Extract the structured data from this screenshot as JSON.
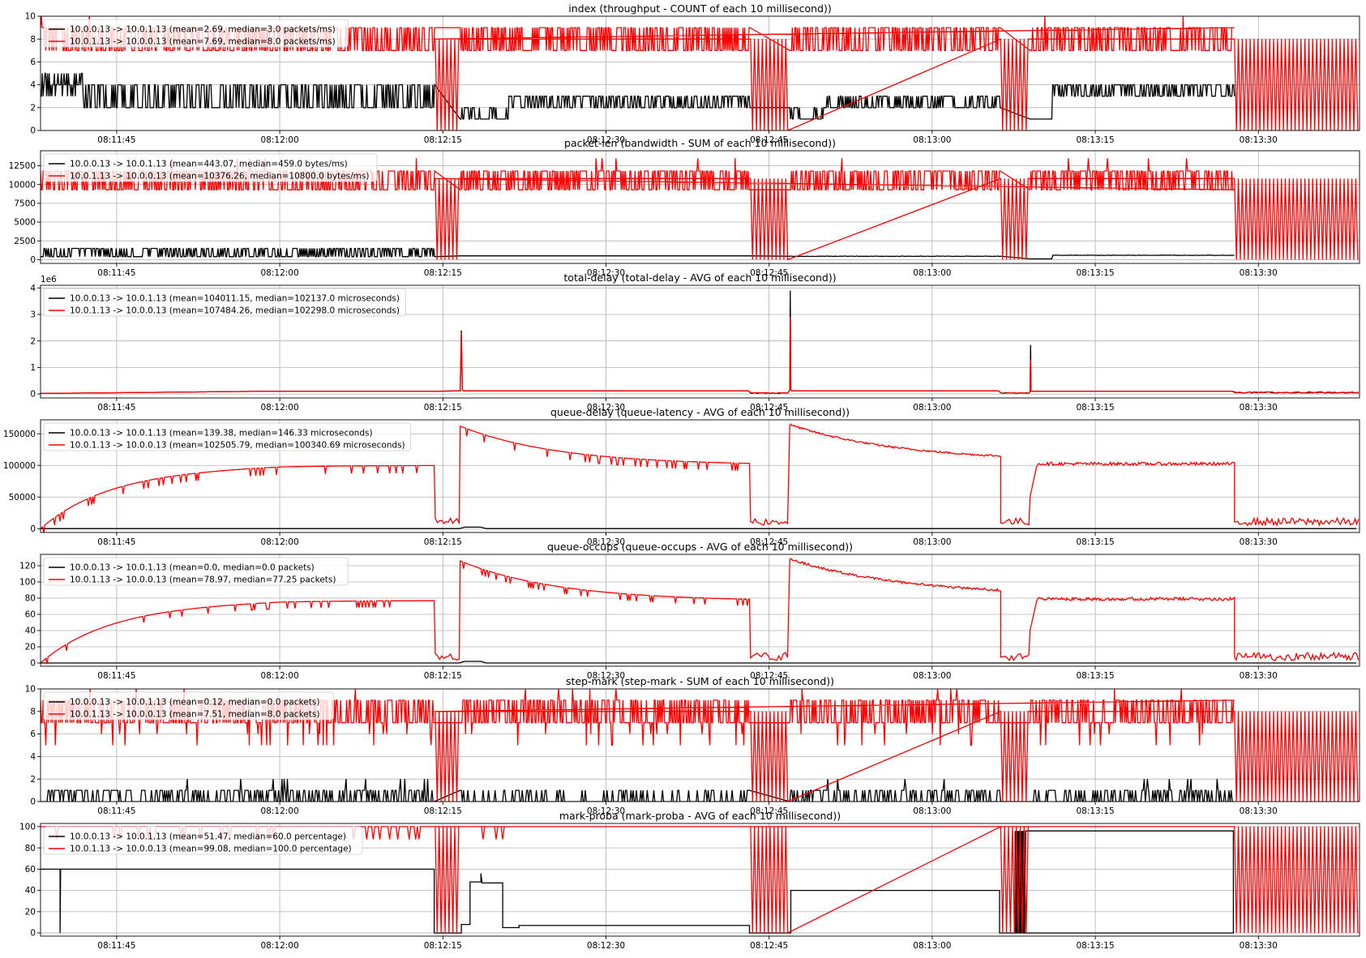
{
  "colors": {
    "series_a": "#000000",
    "series_b": "#ff0000",
    "grid": "#b0b0b0"
  },
  "chart_data": [
    {
      "type": "line",
      "title": "index (throughput - COUNT of each 10 millisecond))",
      "xlabel": "",
      "ylabel": "",
      "x_ticks": [
        "08:11:45",
        "08:12:00",
        "08:12:15",
        "08:12:30",
        "08:12:45",
        "08:13:00",
        "08:13:15",
        "08:13:30"
      ],
      "ylim": [
        0,
        10
      ],
      "y_ticks": [
        0,
        2,
        4,
        6,
        8,
        10
      ],
      "y_tick_labels": [
        "0",
        "2",
        "4",
        "6",
        "8",
        "10"
      ],
      "y_offset_label": "",
      "legend": "top-left",
      "grid": true,
      "series": [
        {
          "name": "10.0.0.13 -> 10.0.1.13 (mean=2.69, median=3.0 packets/ms)",
          "color": "#000000",
          "profile": "throughput_a"
        },
        {
          "name": "10.0.1.13 -> 10.0.0.13 (mean=7.69, median=8.0 packets/ms)",
          "color": "#ff0000",
          "profile": "throughput_b"
        }
      ]
    },
    {
      "type": "line",
      "title": "packet-len (bandwidth - SUM of each 10 millisecond))",
      "xlabel": "",
      "ylabel": "",
      "x_ticks": [
        "08:11:45",
        "08:12:00",
        "08:12:15",
        "08:12:30",
        "08:12:45",
        "08:13:00",
        "08:13:15",
        "08:13:30"
      ],
      "ylim": [
        -500,
        14500
      ],
      "y_ticks": [
        0,
        2500,
        5000,
        7500,
        10000,
        12500
      ],
      "y_tick_labels": [
        "0",
        "2500",
        "5000",
        "7500",
        "10000",
        "12500"
      ],
      "y_offset_label": "",
      "legend": "top-left",
      "grid": true,
      "series": [
        {
          "name": "10.0.0.13 -> 10.0.1.13 (mean=443.07, median=459.0 bytes/ms)",
          "color": "#000000",
          "profile": "bandwidth_a"
        },
        {
          "name": "10.0.1.13 -> 10.0.0.13 (mean=10376.26, median=10800.0 bytes/ms)",
          "color": "#ff0000",
          "profile": "bandwidth_b"
        }
      ]
    },
    {
      "type": "line",
      "title": "total-delay (total-delay - AVG of each 10 millisecond))",
      "xlabel": "",
      "ylabel": "",
      "x_ticks": [
        "08:11:45",
        "08:12:00",
        "08:12:15",
        "08:12:30",
        "08:12:45",
        "08:13:00",
        "08:13:15",
        "08:13:30"
      ],
      "ylim": [
        -0.15,
        4.1
      ],
      "y_ticks": [
        0,
        1,
        2,
        3,
        4
      ],
      "y_tick_labels": [
        "0",
        "1",
        "2",
        "3",
        "4"
      ],
      "y_offset_label": "1e6",
      "legend": "top-left",
      "grid": true,
      "series": [
        {
          "name": "10.0.0.13 -> 10.0.1.13 (mean=104011.15, median=102137.0 microseconds)",
          "color": "#000000",
          "profile": "totaldelay_a"
        },
        {
          "name": "10.0.1.13 -> 10.0.0.13 (mean=107484.26, median=102298.0 microseconds)",
          "color": "#ff0000",
          "profile": "totaldelay_b"
        }
      ]
    },
    {
      "type": "line",
      "title": "queue-delay (queue-latency - AVG of each 10 millisecond))",
      "xlabel": "",
      "ylabel": "",
      "x_ticks": [
        "08:11:45",
        "08:12:00",
        "08:12:15",
        "08:12:30",
        "08:12:45",
        "08:13:00",
        "08:13:15",
        "08:13:30"
      ],
      "ylim": [
        -6000,
        172000
      ],
      "y_ticks": [
        0,
        50000,
        100000,
        150000
      ],
      "y_tick_labels": [
        "0",
        "50000",
        "100000",
        "150000"
      ],
      "y_offset_label": "",
      "legend": "top-left",
      "grid": true,
      "series": [
        {
          "name": "10.0.0.13 -> 10.0.1.13 (mean=139.38, median=146.33 microseconds)",
          "color": "#000000",
          "profile": "queuedelay_a"
        },
        {
          "name": "10.0.1.13 -> 10.0.0.13 (mean=102505.79, median=100340.69 microseconds)",
          "color": "#ff0000",
          "profile": "queuedelay_b"
        }
      ]
    },
    {
      "type": "line",
      "title": "queue-occups (queue-occups - AVG of each 10 millisecond))",
      "xlabel": "",
      "ylabel": "",
      "x_ticks": [
        "08:11:45",
        "08:12:00",
        "08:12:15",
        "08:12:30",
        "08:12:45",
        "08:13:00",
        "08:13:15",
        "08:13:30"
      ],
      "ylim": [
        -4,
        134
      ],
      "y_ticks": [
        0,
        20,
        40,
        60,
        80,
        100,
        120
      ],
      "y_tick_labels": [
        "0",
        "20",
        "40",
        "60",
        "80",
        "100",
        "120"
      ],
      "y_offset_label": "",
      "legend": "top-left",
      "grid": true,
      "series": [
        {
          "name": "10.0.0.13 -> 10.0.1.13 (mean=0.0, median=0.0 packets)",
          "color": "#000000",
          "profile": "occups_a"
        },
        {
          "name": "10.0.1.13 -> 10.0.0.13 (mean=78.97, median=77.25 packets)",
          "color": "#ff0000",
          "profile": "occups_b"
        }
      ]
    },
    {
      "type": "line",
      "title": "step-mark (step-mark - SUM of each 10 millisecond))",
      "xlabel": "",
      "ylabel": "",
      "x_ticks": [
        "08:11:45",
        "08:12:00",
        "08:12:15",
        "08:12:30",
        "08:12:45",
        "08:13:00",
        "08:13:15",
        "08:13:30"
      ],
      "ylim": [
        0,
        10
      ],
      "y_ticks": [
        0,
        2,
        4,
        6,
        8,
        10
      ],
      "y_tick_labels": [
        "0",
        "2",
        "4",
        "6",
        "8",
        "10"
      ],
      "y_offset_label": "",
      "legend": "top-left",
      "grid": true,
      "series": [
        {
          "name": "10.0.0.13 -> 10.0.1.13 (mean=0.12, median=0.0 packets)",
          "color": "#000000",
          "profile": "stepmark_a"
        },
        {
          "name": "10.0.1.13 -> 10.0.0.13 (mean=7.51, median=8.0 packets)",
          "color": "#ff0000",
          "profile": "stepmark_b"
        }
      ]
    },
    {
      "type": "line",
      "title": "mark-proba (mark-proba - AVG of each 10 millisecond))",
      "xlabel": "",
      "ylabel": "",
      "x_ticks": [
        "08:11:45",
        "08:12:00",
        "08:12:15",
        "08:12:30",
        "08:12:45",
        "08:13:00",
        "08:13:15",
        "08:13:30"
      ],
      "ylim": [
        -3,
        103
      ],
      "y_ticks": [
        0,
        20,
        40,
        60,
        80,
        100
      ],
      "y_tick_labels": [
        "0",
        "20",
        "40",
        "60",
        "80",
        "100"
      ],
      "y_offset_label": "",
      "legend": "top-left",
      "grid": true,
      "series": [
        {
          "name": "10.0.0.13 -> 10.0.1.13 (mean=51.47, median=60.0 percentage)",
          "color": "#000000",
          "profile": "markproba_a"
        },
        {
          "name": "10.0.1.13 -> 10.0.0.13 (mean=99.08, median=100.0 percentage)",
          "color": "#ff0000",
          "profile": "markproba_b"
        }
      ]
    }
  ]
}
